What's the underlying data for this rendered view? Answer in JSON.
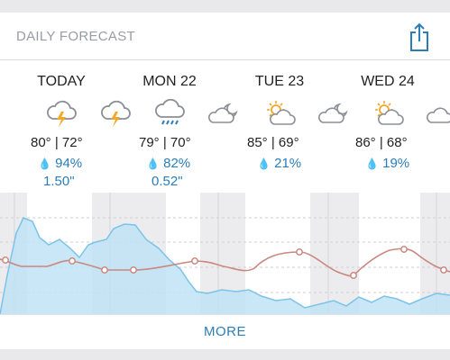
{
  "header": {
    "title": "DAILY FORECAST"
  },
  "days": [
    {
      "name": "TODAY",
      "temps": "80° | 72°",
      "precip": "94%",
      "amount": "1.50\""
    },
    {
      "name": "MON 22",
      "temps": "79° | 70°",
      "precip": "82%",
      "amount": "0.52\""
    },
    {
      "name": "TUE 23",
      "temps": "85° | 69°",
      "precip": "21%"
    },
    {
      "name": "WED 24",
      "temps": "86° | 68°",
      "precip": "19%"
    }
  ],
  "more_label": "MORE",
  "colors": {
    "accent": "#2a7db6",
    "precip_area": "#bfe3f5",
    "precip_line": "#7cc3e8",
    "temp_line": "#c98880",
    "shade": "#ececef",
    "icon_sun": "#f5a623",
    "icon_bolt": "#f5a623"
  }
}
